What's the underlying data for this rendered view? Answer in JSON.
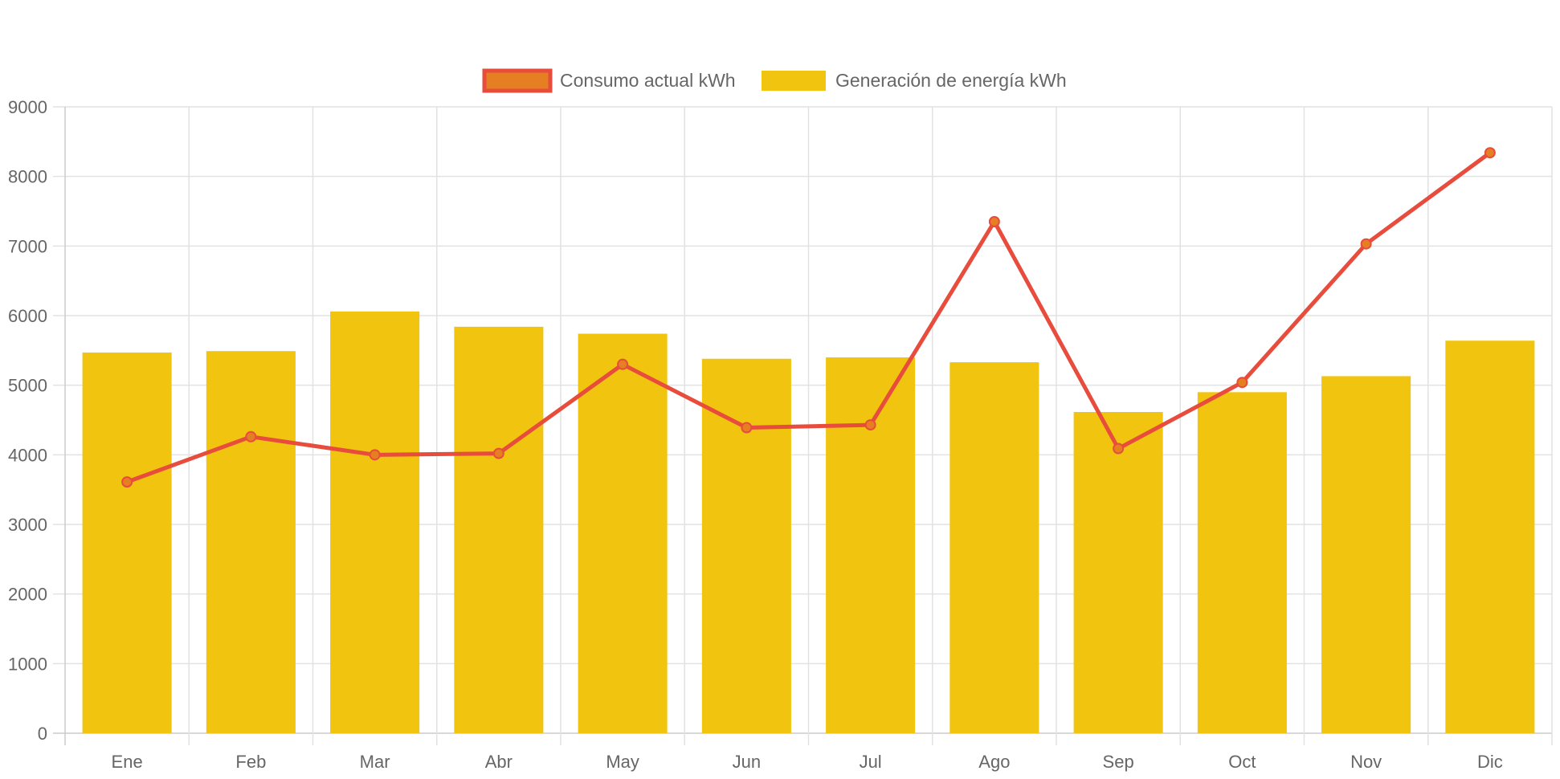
{
  "chart_data": {
    "type": "bar",
    "title": "",
    "xlabel": "",
    "ylabel": "",
    "categories": [
      "Ene",
      "Feb",
      "Mar",
      "Abr",
      "May",
      "Jun",
      "Jul",
      "Ago",
      "Sep",
      "Oct",
      "Nov",
      "Dic"
    ],
    "ylim": [
      0,
      9000
    ],
    "yticks": [
      0,
      1000,
      2000,
      3000,
      4000,
      5000,
      6000,
      7000,
      8000,
      9000
    ],
    "grid": true,
    "legend_position": "top-center",
    "series": [
      {
        "name": "Consumo actual kWh",
        "type": "line",
        "color": "#e74c3c",
        "point_color": "#e67e22",
        "values": [
          3610,
          4260,
          4000,
          4020,
          5300,
          4390,
          4430,
          7350,
          4090,
          5040,
          7030,
          8340
        ]
      },
      {
        "name": "Generación de energía kWh",
        "type": "bar",
        "color": "#f1c40f",
        "values": [
          5470,
          5490,
          6060,
          5840,
          5740,
          5380,
          5400,
          5330,
          4615,
          4900,
          5130,
          5640
        ]
      }
    ]
  }
}
